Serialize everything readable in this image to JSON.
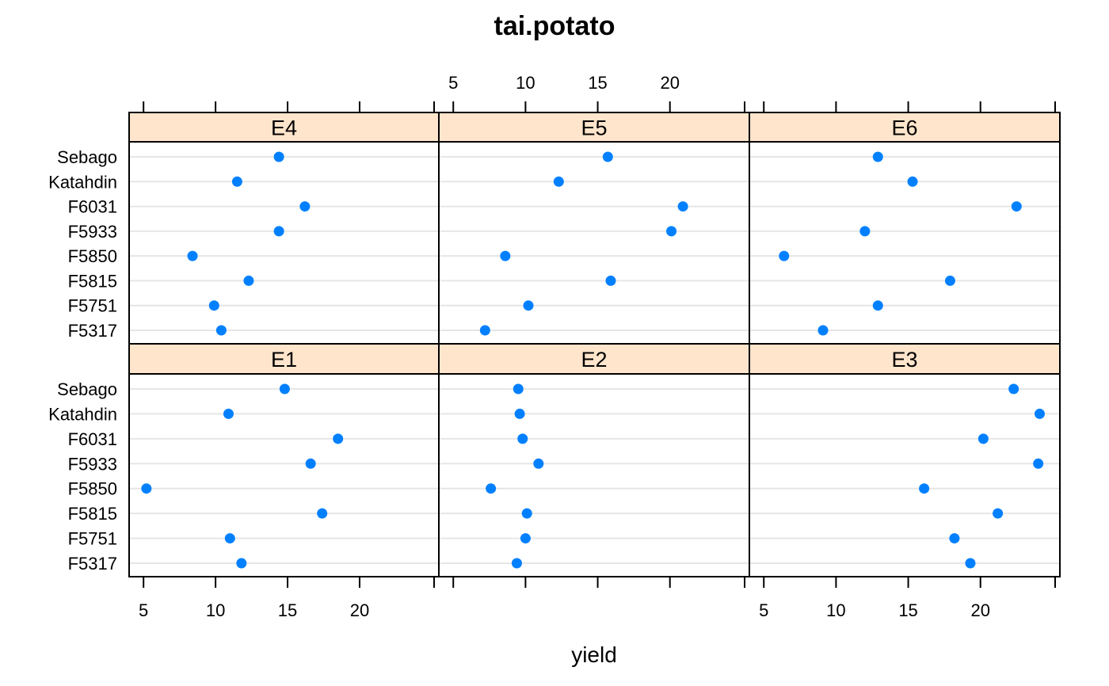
{
  "chart_data": {
    "type": "scatter",
    "title": "tai.potato",
    "xlabel": "yield",
    "ylabel": "",
    "xlim": [
      4,
      25.5
    ],
    "xticks": [
      5,
      10,
      15,
      20
    ],
    "categories": [
      "F5317",
      "F5751",
      "F5815",
      "F5850",
      "F5933",
      "F6031",
      "Katahdin",
      "Sebago"
    ],
    "colors": {
      "strip_fill": "#ffe5cc",
      "point": "#0080ff",
      "grid": "#e6e6e6",
      "frame": "#000000"
    },
    "panels": [
      {
        "name": "E4",
        "values": [
          10.4,
          9.9,
          12.3,
          8.4,
          14.4,
          16.2,
          11.5,
          14.4
        ]
      },
      {
        "name": "E5",
        "values": [
          7.2,
          10.2,
          15.9,
          8.6,
          20.1,
          20.9,
          12.3,
          15.7
        ]
      },
      {
        "name": "E6",
        "values": [
          9.1,
          12.9,
          17.9,
          6.4,
          12.0,
          22.5,
          15.3,
          12.9
        ]
      },
      {
        "name": "E1",
        "values": [
          11.8,
          11.0,
          17.4,
          5.2,
          16.6,
          18.5,
          10.9,
          14.8
        ]
      },
      {
        "name": "E2",
        "values": [
          9.4,
          10.0,
          10.1,
          7.6,
          10.9,
          9.8,
          9.6,
          9.5
        ]
      },
      {
        "name": "E3",
        "values": [
          19.3,
          18.2,
          21.2,
          16.1,
          24.0,
          20.2,
          24.1,
          22.3
        ]
      }
    ]
  }
}
